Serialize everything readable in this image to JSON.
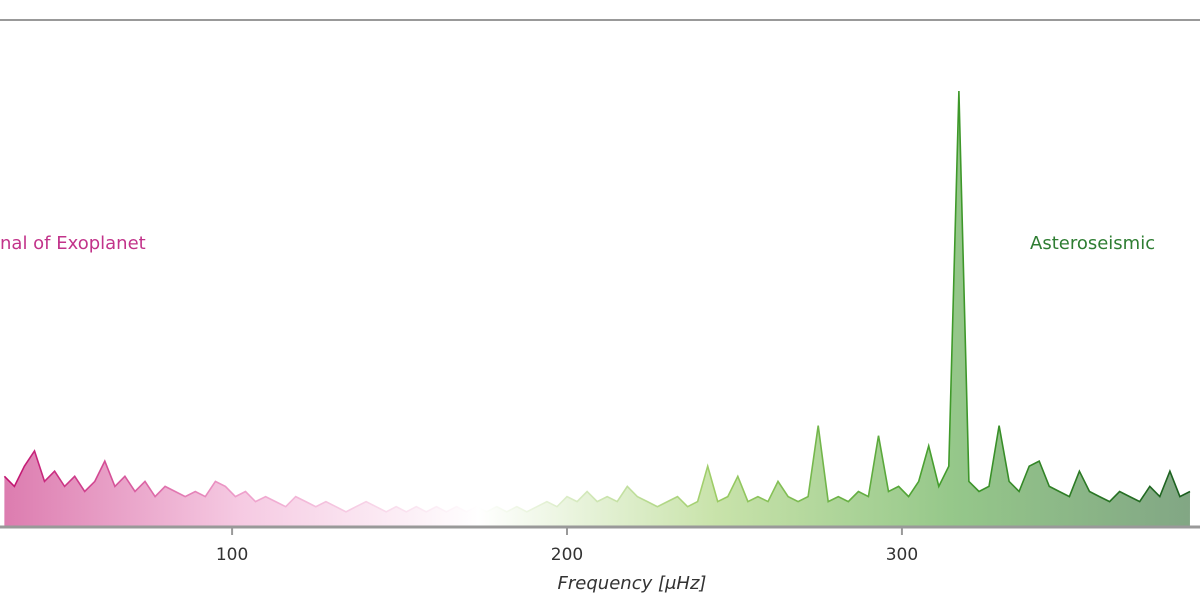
{
  "chart_data": {
    "type": "line",
    "xlabel": "Frequency [μHz]",
    "annotations": [
      {
        "text": "nal of Exoplanet",
        "color": "#c2338a"
      },
      {
        "text": "Asteroseismic",
        "color": "#2e7d32"
      }
    ],
    "gradient_colors": [
      "#c0116e",
      "#ee9fcb",
      "#ffffff",
      "#9ccc65",
      "#3f9a2a",
      "#1b5e20"
    ],
    "xlim": [
      30.7,
      389
    ],
    "ylim": [
      0,
      100
    ],
    "xticks": [
      100,
      200,
      300
    ],
    "x": [
      32,
      35,
      38,
      41,
      44,
      47,
      50,
      53,
      56,
      59,
      62,
      65,
      68,
      71,
      74,
      77,
      80,
      83,
      86,
      89,
      92,
      95,
      98,
      101,
      104,
      107,
      110,
      113,
      116,
      119,
      122,
      125,
      128,
      131,
      134,
      137,
      140,
      143,
      146,
      149,
      152,
      155,
      158,
      161,
      164,
      167,
      170,
      173,
      176,
      179,
      182,
      185,
      188,
      191,
      194,
      197,
      200,
      203,
      206,
      209,
      212,
      215,
      218,
      221,
      224,
      227,
      230,
      233,
      236,
      239,
      242,
      245,
      248,
      251,
      254,
      257,
      260,
      263,
      266,
      269,
      272,
      275,
      278,
      281,
      284,
      287,
      290,
      293,
      296,
      299,
      302,
      305,
      308,
      311,
      314,
      317,
      320,
      323,
      326,
      329,
      332,
      335,
      338,
      341,
      344,
      347,
      350,
      353,
      356,
      359,
      362,
      365,
      368,
      371,
      374,
      377,
      380,
      383,
      386
    ],
    "values": [
      10,
      8,
      12,
      15,
      9,
      11,
      8,
      10,
      7,
      9,
      13,
      8,
      10,
      7,
      9,
      6,
      8,
      7,
      6,
      7,
      6,
      9,
      8,
      6,
      7,
      5,
      6,
      5,
      4,
      6,
      5,
      4,
      5,
      4,
      3,
      4,
      5,
      4,
      3,
      4,
      3,
      4,
      3,
      4,
      3,
      4,
      3,
      4,
      3,
      4,
      3,
      4,
      3,
      4,
      5,
      4,
      6,
      5,
      7,
      5,
      6,
      5,
      8,
      6,
      5,
      4,
      5,
      6,
      4,
      5,
      12,
      5,
      6,
      10,
      5,
      6,
      5,
      9,
      6,
      5,
      6,
      20,
      5,
      6,
      5,
      7,
      6,
      18,
      7,
      8,
      6,
      9,
      16,
      8,
      12,
      86,
      9,
      7,
      8,
      20,
      9,
      7,
      12,
      13,
      8,
      7,
      6,
      11,
      7,
      6,
      5,
      7,
      6,
      5,
      8,
      6,
      11,
      6,
      7
    ]
  }
}
